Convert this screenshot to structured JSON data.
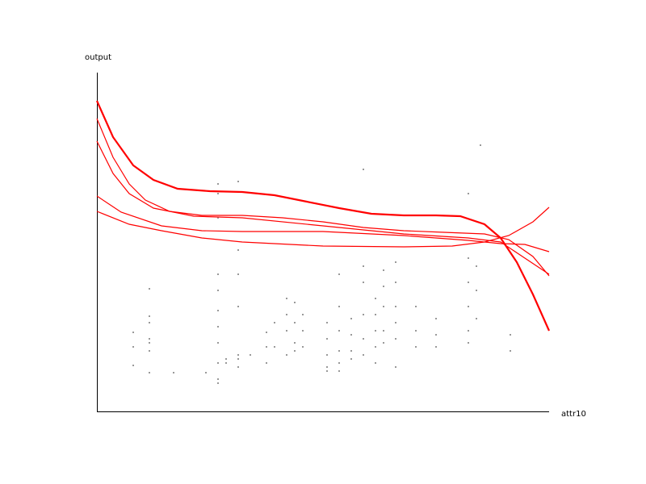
{
  "chart_data": {
    "type": "scatter",
    "x_label": "attr10",
    "y_label": "output",
    "xlim": [
      0,
      560
    ],
    "ylim": [
      0,
      420
    ],
    "points": {
      "color": "#999999",
      "x": [
        45,
        45,
        45,
        65,
        65,
        65,
        65,
        65,
        65,
        65,
        95,
        135,
        150,
        150,
        150,
        150,
        150,
        150,
        150,
        150,
        150,
        150,
        150,
        160,
        160,
        175,
        175,
        175,
        175,
        175,
        175,
        175,
        190,
        210,
        210,
        210,
        220,
        220,
        235,
        235,
        235,
        235,
        245,
        245,
        245,
        245,
        255,
        255,
        255,
        285,
        285,
        285,
        285,
        285,
        300,
        300,
        300,
        300,
        300,
        300,
        315,
        315,
        315,
        315,
        330,
        330,
        330,
        330,
        330,
        330,
        345,
        345,
        345,
        345,
        345,
        355,
        355,
        355,
        355,
        355,
        370,
        370,
        370,
        370,
        370,
        370,
        395,
        395,
        395,
        420,
        420,
        420,
        460,
        460,
        460,
        460,
        460,
        460,
        470,
        470,
        470,
        475,
        512,
        512
      ],
      "y": [
        98,
        80,
        57,
        152,
        118,
        110,
        90,
        85,
        75,
        48,
        48,
        48,
        282,
        270,
        240,
        170,
        150,
        125,
        105,
        85,
        60,
        40,
        35,
        60,
        65,
        285,
        200,
        170,
        130,
        70,
        65,
        55,
        70,
        98,
        80,
        60,
        110,
        80,
        140,
        120,
        100,
        70,
        135,
        110,
        85,
        75,
        120,
        100,
        80,
        110,
        90,
        70,
        55,
        50,
        170,
        130,
        100,
        75,
        60,
        50,
        115,
        95,
        75,
        65,
        300,
        180,
        160,
        120,
        90,
        70,
        140,
        120,
        100,
        80,
        60,
        175,
        155,
        130,
        100,
        85,
        185,
        160,
        130,
        110,
        90,
        55,
        130,
        100,
        80,
        115,
        95,
        80,
        270,
        190,
        160,
        130,
        100,
        85,
        180,
        150,
        115,
        330,
        95,
        75
      ]
    },
    "series": [
      {
        "color": "#ff0000",
        "x": [
          0,
          20,
          45,
          70,
          100,
          140,
          180,
          220,
          260,
          300,
          340,
          380,
          420,
          450,
          480,
          500,
          520,
          540,
          560
        ],
        "y": [
          385,
          340,
          305,
          287,
          276,
          273,
          272,
          268,
          260,
          252,
          245,
          243,
          243,
          242,
          232,
          215,
          185,
          145,
          100
        ]
      },
      {
        "color": "#ff0000",
        "x": [
          0,
          20,
          40,
          60,
          90,
          130,
          180,
          230,
          280,
          330,
          380,
          430,
          480,
          510,
          540,
          560
        ],
        "y": [
          363,
          315,
          282,
          262,
          248,
          243,
          243,
          240,
          235,
          228,
          224,
          222,
          220,
          213,
          192,
          168
        ]
      },
      {
        "color": "#ff0000",
        "x": [
          0,
          20,
          40,
          70,
          120,
          180,
          280,
          380,
          460,
          500,
          530,
          560
        ],
        "y": [
          335,
          295,
          270,
          252,
          242,
          240,
          230,
          220,
          215,
          210,
          190,
          170
        ]
      },
      {
        "color": "#ff0000",
        "x": [
          0,
          30,
          80,
          130,
          180,
          280,
          380,
          460,
          500,
          530,
          560
        ],
        "y": [
          267,
          247,
          230,
          224,
          223,
          223,
          218,
          212,
          208,
          207,
          198
        ]
      },
      {
        "color": "#ff0000",
        "x": [
          0,
          40,
          80,
          130,
          180,
          280,
          380,
          440,
          480,
          510,
          540,
          560
        ],
        "y": [
          248,
          232,
          224,
          215,
          210,
          205,
          204,
          205,
          210,
          218,
          235,
          253
        ]
      }
    ]
  }
}
